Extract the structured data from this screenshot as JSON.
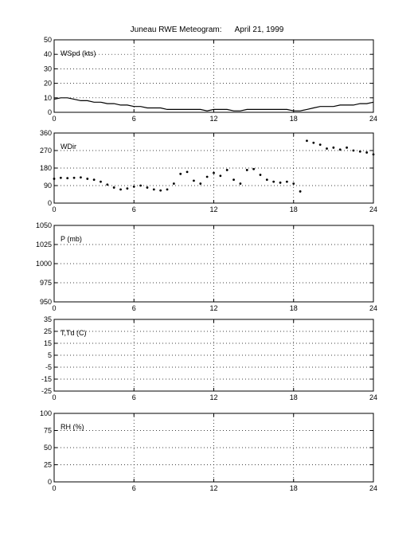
{
  "chart_data": {
    "title": "Juneau RWE Meteogram:      April 21, 1999",
    "type": "line",
    "x_range": [
      0,
      24
    ],
    "x_ticks": [
      0,
      6,
      12,
      18,
      24
    ],
    "grid": true,
    "panels": [
      {
        "name": "wspd",
        "label": "WSpd (kts)",
        "type": "line",
        "ylim": [
          0,
          50
        ],
        "y_ticks": [
          0,
          10,
          20,
          30,
          40,
          50
        ],
        "series": [
          {
            "x": [
              0,
              0.5,
              1,
              1.5,
              2,
              2.5,
              3,
              3.5,
              4,
              4.5,
              5,
              5.5,
              6,
              6.5,
              7,
              7.5,
              8,
              8.5,
              9,
              9.5,
              10,
              10.5,
              11,
              11.5,
              12,
              12.5,
              13,
              13.5,
              14,
              14.5,
              15,
              15.5,
              16,
              16.5,
              17,
              17.5,
              18,
              18.5,
              19,
              19.5,
              20,
              20.5,
              21,
              21.5,
              22,
              22.5,
              23,
              23.5,
              24
            ],
            "y": [
              9,
              10,
              10,
              9,
              8,
              8,
              7,
              7,
              6,
              6,
              5,
              5,
              4,
              4,
              3,
              3,
              3,
              2,
              2,
              2,
              2,
              2,
              2,
              1,
              2,
              2,
              2,
              1,
              1,
              2,
              2,
              2,
              2,
              2,
              2,
              2,
              1,
              1,
              2,
              3,
              4,
              4,
              4,
              5,
              5,
              5,
              6,
              6,
              7
            ]
          }
        ]
      },
      {
        "name": "wdir",
        "label": "WDir",
        "type": "scatter",
        "ylim": [
          0,
          360
        ],
        "y_ticks": [
          0,
          90,
          180,
          270,
          360
        ],
        "series": [
          {
            "x": [
              0,
              0.5,
              1,
              1.5,
              2,
              2.5,
              3,
              3.5,
              4,
              4.5,
              5,
              5.5,
              6,
              6.5,
              7,
              7.5,
              8,
              8.5,
              9,
              9.5,
              10,
              10.5,
              11,
              11.5,
              12,
              12.5,
              13,
              13.5,
              14,
              14.5,
              15,
              15.5,
              16,
              16.5,
              17,
              17.5,
              18,
              18.5,
              19,
              19.5,
              20,
              20.5,
              21,
              21.5,
              22,
              22.5,
              23,
              23.5,
              24
            ],
            "y": [
              125,
              130,
              128,
              130,
              132,
              125,
              120,
              110,
              95,
              80,
              70,
              75,
              85,
              90,
              80,
              70,
              65,
              70,
              100,
              150,
              160,
              115,
              100,
              135,
              155,
              140,
              170,
              120,
              100,
              170,
              175,
              145,
              120,
              110,
              105,
              110,
              100,
              60,
              320,
              310,
              300,
              280,
              285,
              275,
              285,
              270,
              265,
              260,
              250
            ]
          }
        ]
      },
      {
        "name": "pres",
        "label": "P (mb)",
        "type": "line",
        "ylim": [
          950,
          1050
        ],
        "y_ticks": [
          950,
          975,
          1000,
          1025,
          1050
        ],
        "series": []
      },
      {
        "name": "temp",
        "label": "T,Td (C)",
        "type": "line",
        "ylim": [
          -25,
          35
        ],
        "y_ticks": [
          -25,
          -15,
          -5,
          5,
          15,
          25,
          35
        ],
        "series": []
      },
      {
        "name": "rh",
        "label": "RH (%)",
        "type": "line",
        "ylim": [
          0,
          100
        ],
        "y_ticks": [
          0,
          25,
          50,
          75,
          100
        ],
        "series": []
      }
    ]
  }
}
